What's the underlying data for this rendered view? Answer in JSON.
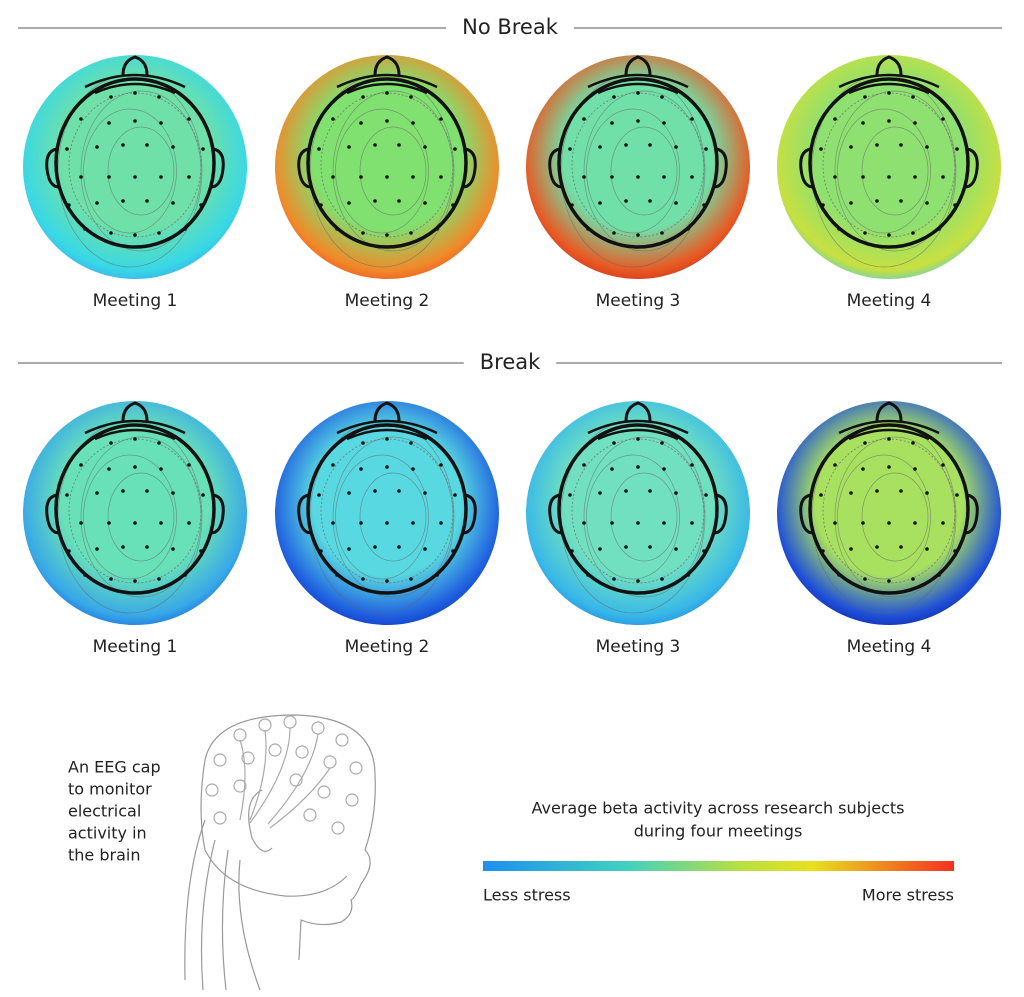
{
  "sections": [
    {
      "title": "No Break",
      "maps": [
        {
          "label": "Meeting 1"
        },
        {
          "label": "Meeting 2"
        },
        {
          "label": "Meeting 3"
        },
        {
          "label": "Meeting 4"
        }
      ]
    },
    {
      "title": "Break",
      "maps": [
        {
          "label": "Meeting 1"
        },
        {
          "label": "Meeting 2"
        },
        {
          "label": "Meeting 3"
        },
        {
          "label": "Meeting 4"
        }
      ]
    }
  ],
  "cap_caption": [
    "An EEG cap",
    "to monitor",
    "electrical",
    "activity in",
    "the brain"
  ],
  "legend": {
    "title": [
      "Average beta activity across research subjects",
      "during four meetings"
    ],
    "low": "Less stress",
    "high": "More stress"
  }
}
